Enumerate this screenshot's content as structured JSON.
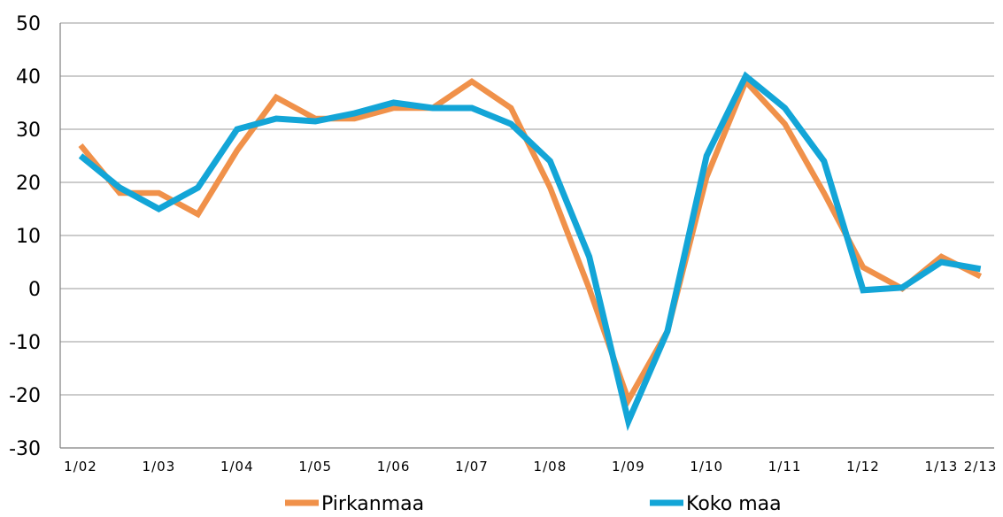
{
  "chart_data": {
    "type": "line",
    "title": "",
    "xlabel": "",
    "ylabel": "",
    "ylim": [
      -30,
      50
    ],
    "yticks": [
      50,
      40,
      30,
      20,
      10,
      0,
      -10,
      -20,
      -30
    ],
    "grid": "horizontal",
    "legend": "bottom",
    "x_tick_labels": [
      {
        "index": 0,
        "label": "1/02"
      },
      {
        "index": 2,
        "label": "1/03"
      },
      {
        "index": 4,
        "label": "1/04"
      },
      {
        "index": 6,
        "label": "1/05"
      },
      {
        "index": 8,
        "label": "1/06"
      },
      {
        "index": 10,
        "label": "1/07"
      },
      {
        "index": 12,
        "label": "1/08"
      },
      {
        "index": 14,
        "label": "1/09"
      },
      {
        "index": 16,
        "label": "1/10"
      },
      {
        "index": 18,
        "label": "1/11"
      },
      {
        "index": 20,
        "label": "1/12"
      },
      {
        "index": 22,
        "label": "1/13"
      },
      {
        "index": 23,
        "label": "2/13"
      }
    ],
    "series": [
      {
        "name": "Pirkanmaa",
        "color": "#f0914a",
        "values": [
          27,
          18,
          18,
          14,
          26,
          36,
          32,
          32,
          34,
          34,
          39,
          34,
          19,
          0,
          -21,
          -8,
          21,
          39,
          31,
          18,
          4,
          0,
          6,
          2.3
        ]
      },
      {
        "name": "Koko maa",
        "color": "#13a5d7",
        "values": [
          25,
          19,
          15,
          19,
          30,
          32,
          31.5,
          33,
          35,
          34,
          34,
          31,
          24,
          6,
          -25,
          -8,
          25,
          40,
          34,
          24,
          -0.3,
          0.2,
          5,
          3.7
        ]
      }
    ]
  },
  "colors": {
    "grid": "#999999",
    "axis": "#7f7f7f",
    "text": "#000000"
  }
}
